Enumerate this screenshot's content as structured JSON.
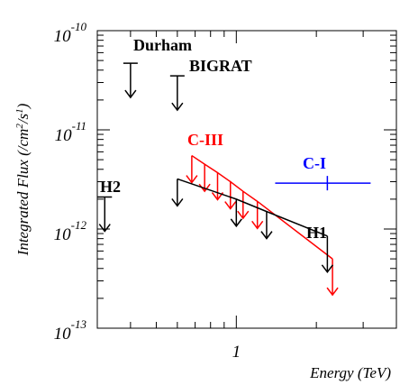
{
  "chart_data": {
    "type": "scatter",
    "title": "",
    "xlabel": "Energy (TeV)",
    "ylabel": "Integrated Flux (/cm2/s1)",
    "ylabel_parts": {
      "main": "Integrated Flux (/cm",
      "exp1": "2",
      "mid": "/s",
      "exp2": "1",
      "end": ")"
    },
    "x_scale": "log",
    "y_scale": "log",
    "xlim": [
      0.3,
      4.0
    ],
    "ylim": [
      1e-13,
      1e-10
    ],
    "x_tick_labels": [
      {
        "value": 1,
        "label": "1"
      }
    ],
    "y_tick_labels": [
      {
        "value": 1e-10,
        "base": "10",
        "exp": "-10"
      },
      {
        "value": 1e-11,
        "base": "10",
        "exp": "-11"
      },
      {
        "value": 1e-12,
        "base": "10",
        "exp": "-12"
      },
      {
        "value": 1e-13,
        "base": "10",
        "exp": "-13"
      }
    ],
    "series": [
      {
        "name": "Durham",
        "color": "#000000",
        "kind": "upper_limit",
        "points": [
          {
            "x": 0.4,
            "y": 4.7e-11
          }
        ]
      },
      {
        "name": "BIGRAT",
        "color": "#000000",
        "kind": "upper_limit",
        "points": [
          {
            "x": 0.6,
            "y": 3.5e-11
          }
        ]
      },
      {
        "name": "H2",
        "color": "#000000",
        "kind": "upper_limit",
        "points": [
          {
            "x": 0.32,
            "y": 2.1e-12
          }
        ]
      },
      {
        "name": "C-III",
        "color": "#ff0000",
        "kind": "upper_limit_curve",
        "points": [
          {
            "x": 0.68,
            "y": 5.5e-12
          },
          {
            "x": 0.76,
            "y": 4.5e-12
          },
          {
            "x": 0.85,
            "y": 3.7e-12
          },
          {
            "x": 0.95,
            "y": 3e-12
          },
          {
            "x": 1.06,
            "y": 2.4e-12
          },
          {
            "x": 1.2,
            "y": 1.9e-12
          },
          {
            "x": 2.3,
            "y": 5e-13
          }
        ]
      },
      {
        "name": "H1",
        "color": "#000000",
        "kind": "upper_limit_curve",
        "points": [
          {
            "x": 0.6,
            "y": 3.2e-12
          },
          {
            "x": 1.0,
            "y": 2e-12
          },
          {
            "x": 1.3,
            "y": 1.5e-12
          },
          {
            "x": 2.2,
            "y": 8.5e-13
          }
        ]
      },
      {
        "name": "C-I",
        "color": "#0000ff",
        "kind": "measurement",
        "points": [
          {
            "x": 2.2,
            "y": 2.9e-12,
            "x_err": [
              1.4,
              3.2
            ]
          }
        ]
      }
    ]
  }
}
